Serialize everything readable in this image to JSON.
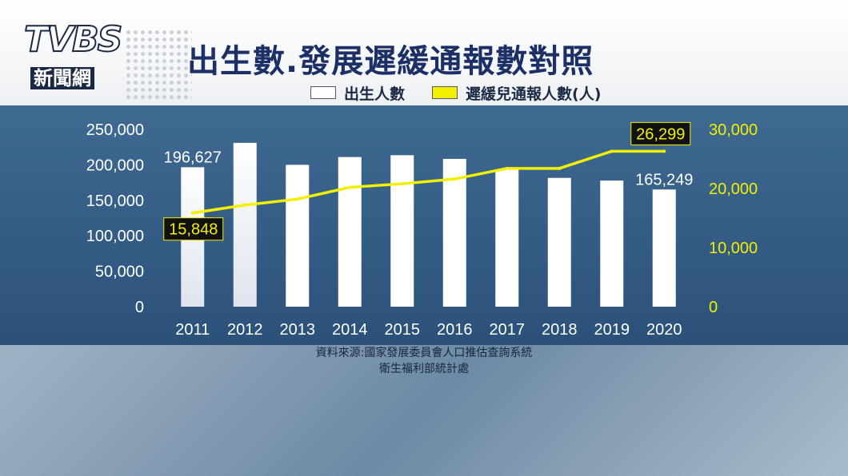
{
  "brand": {
    "logo_text": "TVBS",
    "logo_sub": "新聞網"
  },
  "title": "出生數.發展遲緩通報數對照",
  "legend": [
    {
      "label": "出生人數",
      "color": "#ffffff"
    },
    {
      "label": "遲緩兒通報人數(人)",
      "color": "#f2f000"
    }
  ],
  "source": {
    "line1": "資料來源:國家發展委員會人口推估查詢系統",
    "line2": "衛生福利部統計處"
  },
  "chart_data": {
    "type": "bar",
    "categories": [
      "2011",
      "2012",
      "2013",
      "2014",
      "2015",
      "2016",
      "2017",
      "2018",
      "2019",
      "2020"
    ],
    "series": [
      {
        "name": "出生人數",
        "type": "bar",
        "axis": "left",
        "color": "#ffffff",
        "values": [
          196627,
          231000,
          200000,
          211000,
          213600,
          208400,
          193800,
          181600,
          177800,
          165249
        ]
      },
      {
        "name": "遲緩兒通報人數(人)",
        "type": "line",
        "axis": "right",
        "color": "#f2f000",
        "values": [
          15848,
          17200,
          18200,
          20200,
          20800,
          21600,
          23400,
          23400,
          26299,
          26299
        ]
      }
    ],
    "left_axis": {
      "ylim": [
        0,
        250000
      ],
      "ticks": [
        "250,000",
        "200,000",
        "150,000",
        "100,000",
        "50,000",
        "0"
      ]
    },
    "right_axis": {
      "ylim": [
        0,
        30000
      ],
      "ticks": [
        "30,000",
        "20,000",
        "10,000",
        "0"
      ],
      "color": "#f2f000"
    },
    "annotations": [
      {
        "series": 0,
        "index": 0,
        "text": "196,627"
      },
      {
        "series": 0,
        "index": 9,
        "text": "165,249"
      },
      {
        "series": 1,
        "index": 0,
        "text": "15,848",
        "boxed": true
      },
      {
        "series": 1,
        "index": 8,
        "text": "26,299",
        "boxed": true
      }
    ],
    "grid": false,
    "legend_position": "top"
  }
}
